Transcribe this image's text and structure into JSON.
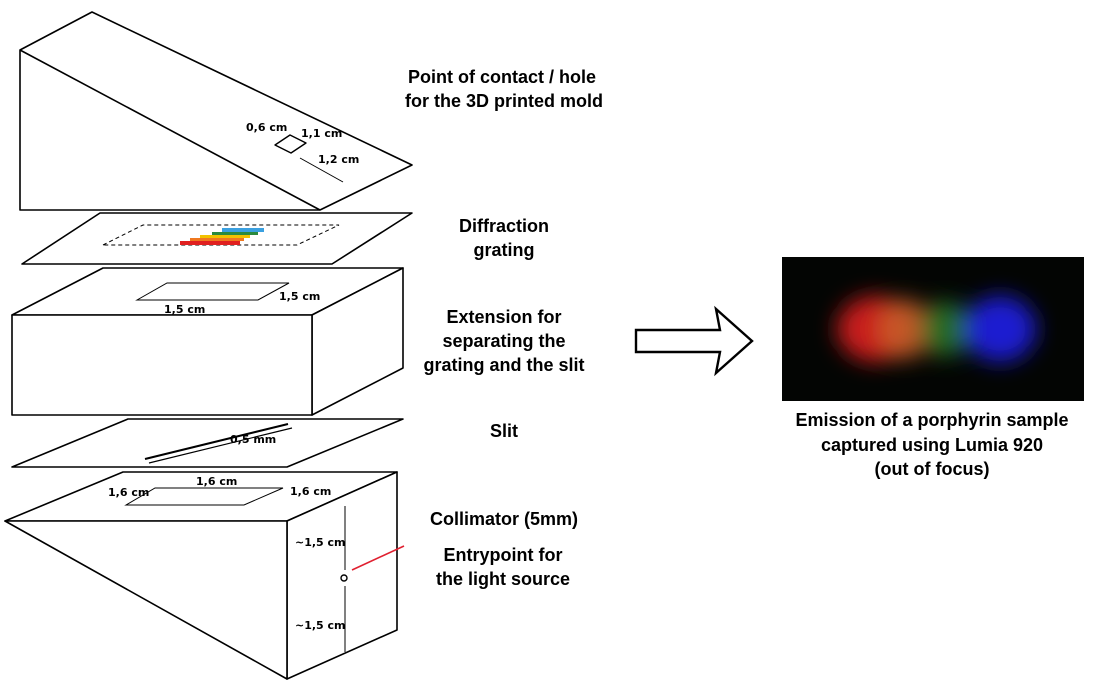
{
  "labels": {
    "contact_line1": "Point of contact / hole",
    "contact_line2": "for the 3D printed mold",
    "grating_line1": "Diffraction",
    "grating_line2": "grating",
    "extension_line1": "Extension for",
    "extension_line2": "separating the",
    "extension_line3": "grating and the slit",
    "slit": "Slit",
    "collimator": "Collimator (5mm)",
    "entry_line1": "Entrypoint for",
    "entry_line2": "the light source",
    "caption_line1": "Emission of a porphyrin sample",
    "caption_line2": "captured using Lumia 920",
    "caption_line3": "(out of focus)"
  },
  "dimensions": {
    "hole_a": "0,6 cm",
    "hole_b": "1,1 cm",
    "hole_c": "1,2 cm",
    "ext_a": "1,5 cm",
    "ext_b": "1,5 cm",
    "slit_width": "0,5 mm",
    "coll_a": "1,6 cm",
    "coll_b": "1,6 cm",
    "coll_c": "1,6 cm",
    "coll_v1": "~1,5 cm",
    "coll_v2": "~1,5 cm"
  },
  "colors": {
    "grating_stripes": [
      "#3aa0e0",
      "#2b8a3e",
      "#f2c200",
      "#f07820",
      "#e02020"
    ],
    "entry_pointer": "#e02030",
    "spectrum_background": "#030503",
    "spectrum_red": "#c81a1a",
    "spectrum_orange": "#c8622a",
    "spectrum_green": "#2c7a2c",
    "spectrum_blue": "#1a1fd0"
  }
}
